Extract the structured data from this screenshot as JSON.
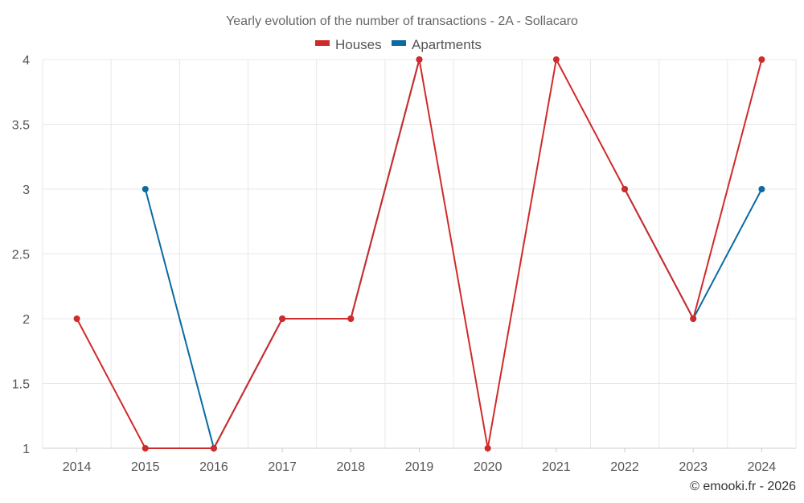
{
  "chart_data": {
    "type": "line",
    "title": "Yearly evolution of the number of transactions - 2A - Sollacaro",
    "x": [
      "2014",
      "2015",
      "2016",
      "2017",
      "2018",
      "2019",
      "2020",
      "2021",
      "2022",
      "2023",
      "2024"
    ],
    "series": [
      {
        "name": "Houses",
        "color": "#d12a2a",
        "values": [
          2,
          1,
          1,
          2,
          2,
          4,
          1,
          4,
          3,
          2,
          4
        ]
      },
      {
        "name": "Apartments",
        "color": "#0a6aa1",
        "values": [
          null,
          3,
          1,
          2,
          2,
          4,
          null,
          null,
          3,
          2,
          3
        ]
      }
    ],
    "yticks": [
      "1",
      "1.5",
      "2",
      "2.5",
      "3",
      "3.5",
      "4"
    ],
    "ylim": [
      1,
      4
    ],
    "grid": true,
    "legend_position": "top-center",
    "credit": "© emooki.fr - 2026"
  }
}
